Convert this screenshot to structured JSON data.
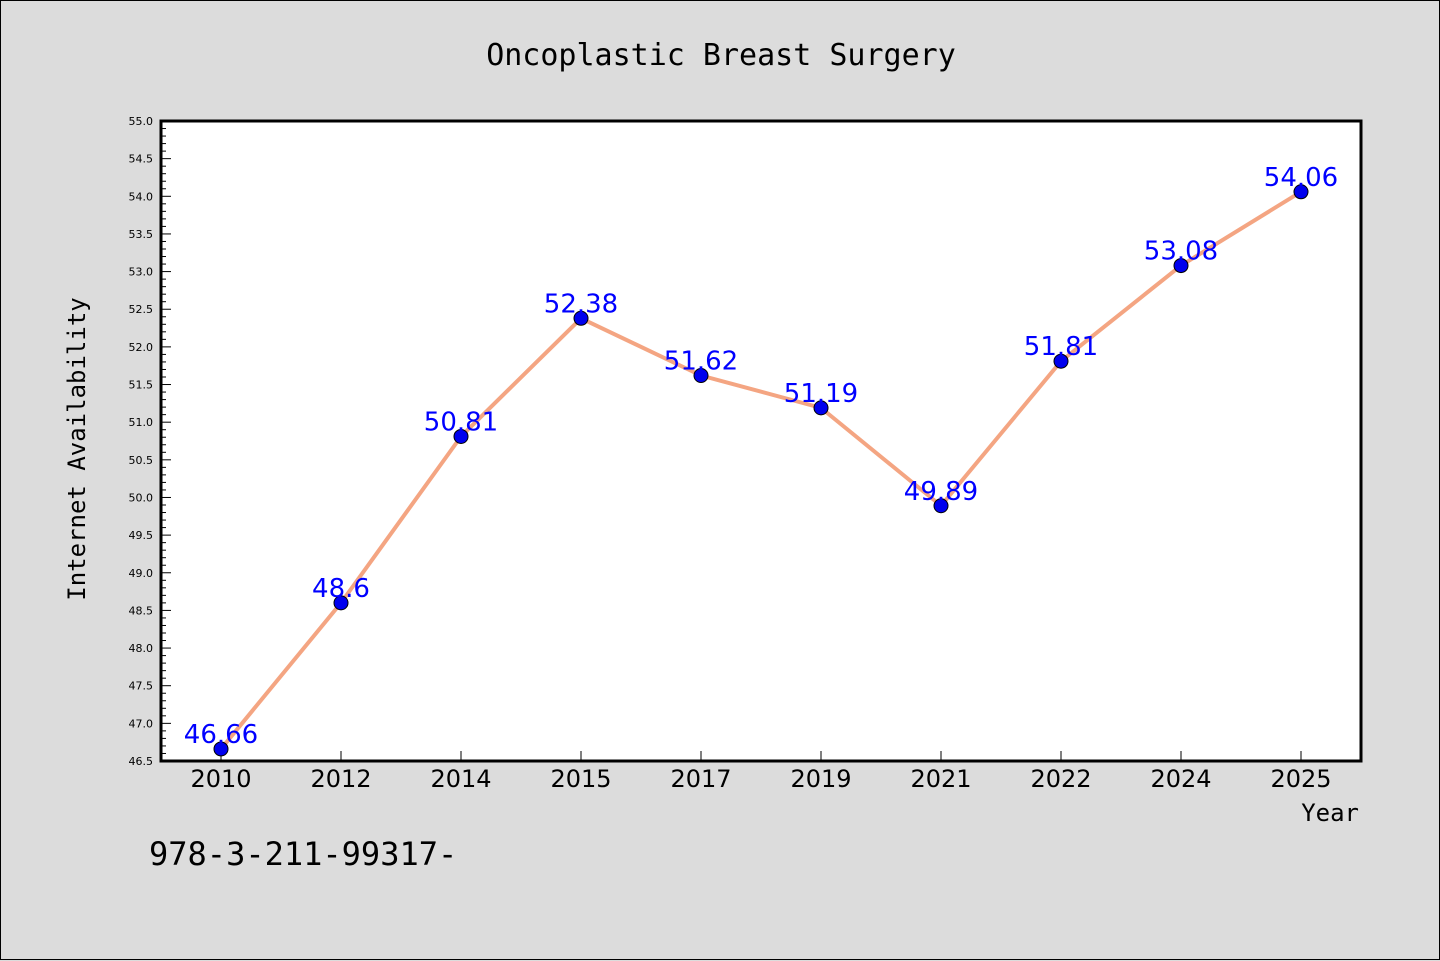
{
  "chart_data": {
    "type": "line",
    "title": "Oncoplastic Breast Surgery",
    "xlabel": "Year",
    "ylabel": "Internet Availability",
    "categories": [
      "2010",
      "2012",
      "2014",
      "2015",
      "2017",
      "2019",
      "2021",
      "2022",
      "2024",
      "2025"
    ],
    "series": [
      {
        "values": [
          46.66,
          48.6,
          50.81,
          52.38,
          51.62,
          51.19,
          49.89,
          51.81,
          53.08,
          54.06
        ]
      }
    ],
    "data_labels": [
      "46.66",
      "48.6",
      "50.81",
      "52.38",
      "51.62",
      "51.19",
      "49.89",
      "51.81",
      "53.08",
      "54.06"
    ],
    "ylim": [
      46.5,
      55.0
    ],
    "yticks": [
      "46.5",
      "47.0",
      "47.5",
      "48.0",
      "48.5",
      "49.0",
      "49.5",
      "50.0",
      "50.5",
      "51.0",
      "51.5",
      "52.0",
      "52.5",
      "53.0",
      "53.5",
      "54.0",
      "54.5",
      "55.0"
    ],
    "grid": false,
    "legend": "none",
    "colors": {
      "line": "#f4a582",
      "marker": "#0000ee",
      "label": "#0000ff",
      "background": "#dcdcdc",
      "plot_background": "#ffffff"
    }
  },
  "footer_text": "978-3-211-99317-"
}
